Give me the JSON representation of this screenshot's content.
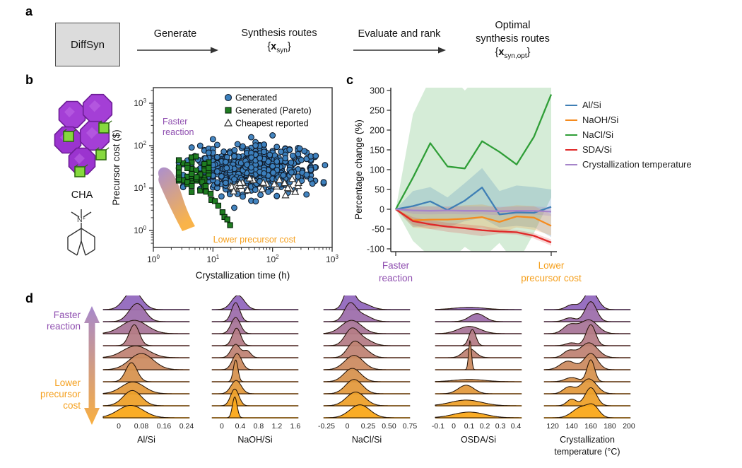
{
  "panel_a": {
    "label": "a",
    "diffsyn_box": "DiffSyn",
    "arrow1_label": "Generate",
    "arrow2_label": "Evaluate and rank",
    "step_routes": {
      "line1": "Synthesis routes",
      "brace_open": "{",
      "var": "x",
      "sub": "syn",
      "brace_close": "}"
    },
    "step_optimal": {
      "line1": "Optimal",
      "line2": "synthesis routes",
      "brace_open": "{",
      "var": "x",
      "sub": "syn,opt",
      "brace_close": "}"
    }
  },
  "panel_b": {
    "label": "b",
    "structure_caption": "CHA",
    "molecule_atom": "N",
    "molecule_charge": "+",
    "xlabel": "Crystallization time (h)",
    "ylabel": "Precursor cost ($)",
    "annotation_faster_line1": "Faster",
    "annotation_faster_line2": "reaction",
    "annotation_lower": "Lower precursor cost"
  },
  "panel_c": {
    "label": "c",
    "ylabel": "Percentage change (%)",
    "legend": [
      {
        "label": "Al/Si"
      },
      {
        "label": "NaOH/Si"
      },
      {
        "label": "NaCl/Si"
      },
      {
        "label": "SDA/Si"
      },
      {
        "label": "Crystallization temperature"
      }
    ],
    "xtick_left_line1": "Faster",
    "xtick_left_line2": "reaction",
    "xtick_right_line1": "Lower",
    "xtick_right_line2": "precursor cost"
  },
  "panel_d": {
    "label": "d",
    "annotation_faster_line1": "Faster",
    "annotation_faster_line2": "reaction",
    "annotation_lower_line1": "Lower",
    "annotation_lower_line2": "precursor",
    "annotation_lower_line3": "cost"
  },
  "colors": {
    "annotation_purple": "#8f4fb0",
    "annotation_orange": "#f5a01e",
    "arrow_gradient_top": "#9d7bc6",
    "arrow_gradient_bottom": "#f8a62a",
    "ridge_top": "#9268be",
    "ridge_bottom": "#faa819",
    "axis": "#333333"
  },
  "chart_data": [
    {
      "id": "b_scatter",
      "type": "scatter",
      "xlabel": "Crystallization time (h)",
      "ylabel": "Precursor cost ($)",
      "xscale": "log",
      "yscale": "log",
      "xlim": [
        1,
        1000
      ],
      "ylim": [
        0.4,
        2500
      ],
      "xtick_exponents": [
        "0",
        "1",
        "2",
        "3"
      ],
      "ytick_exponents": [
        "0",
        "1",
        "2",
        "3"
      ],
      "seed": 42,
      "series": [
        {
          "name": "Generated",
          "marker": "circle",
          "color": "#3c80bd",
          "edge": "#101c2c",
          "count": 620,
          "logx_mean": 1.62,
          "logx_sd": 0.52,
          "logx_clip": [
            0.4,
            2.88
          ],
          "logy_mean": 1.42,
          "logy_sd": 0.27,
          "logy_clip": [
            0.08,
            2.3
          ],
          "snap": true
        },
        {
          "name": "Generated (Pareto)",
          "marker": "square",
          "color": "#1f7d21",
          "edge": "#06230a",
          "count_cluster": 46,
          "cluster_logx": [
            0.4,
            0.95
          ],
          "cluster_logy_mean": 1.38,
          "cluster_logy_sd": 0.2,
          "cluster_logy_clip": [
            0.8,
            1.76
          ],
          "count_tail": 12,
          "tail_logx_start": 0.75,
          "tail_logx_step": 0.05,
          "tail_logy_start": 1.25,
          "tail_logy_step": -0.1,
          "snap": true
        },
        {
          "name": "Cheapest reported",
          "marker": "triangle",
          "color": "#ffffff",
          "edge": "#333333",
          "count": 26,
          "logx_range": [
            1.15,
            2.55
          ],
          "logy_mean": 1.08,
          "logy_sd": 0.1,
          "logy_clip": [
            0.75,
            1.3
          ]
        }
      ]
    },
    {
      "id": "c_lines",
      "type": "line",
      "ylabel": "Percentage change (%)",
      "ylim": [
        -100,
        300
      ],
      "yticks": [
        300,
        250,
        200,
        150,
        100,
        50,
        0,
        -50,
        -100
      ],
      "x_count": 10,
      "series": [
        {
          "name": "NaCl/Si",
          "color": "#2f9e37",
          "band_opacity": 0.2,
          "values": [
            0,
            80,
            167,
            108,
            103,
            172,
            145,
            113,
            183,
            290
          ],
          "band_lower": [
            0,
            -80,
            -120,
            -135,
            -95,
            -125,
            -85,
            -140,
            -60,
            30
          ],
          "band_upper": [
            0,
            240,
            330,
            345,
            300,
            345,
            330,
            310,
            350,
            430
          ]
        },
        {
          "name": "Al/Si",
          "color": "#3f7fb5",
          "band_opacity": 0.22,
          "values": [
            0,
            8,
            20,
            -2,
            22,
            55,
            -13,
            -8,
            -9,
            6
          ],
          "band_lower": [
            0,
            -45,
            -42,
            -46,
            -30,
            -22,
            -46,
            -42,
            -46,
            -70
          ],
          "band_upper": [
            0,
            46,
            56,
            30,
            66,
            104,
            46,
            60,
            56,
            50
          ]
        },
        {
          "name": "NaOH/Si",
          "color": "#f58b1f",
          "band_opacity": 0.22,
          "values": [
            0,
            -28,
            -26,
            -26,
            -24,
            -20,
            -32,
            -18,
            -21,
            -42
          ],
          "band_lower": [
            0,
            -46,
            -50,
            -46,
            -50,
            -46,
            -60,
            -46,
            -52,
            -66
          ],
          "band_upper": [
            0,
            6,
            8,
            6,
            10,
            12,
            4,
            10,
            8,
            -12
          ]
        },
        {
          "name": "SDA/Si",
          "color": "#e02828",
          "band_opacity": 0.18,
          "values": [
            0,
            -30,
            -38,
            -44,
            -48,
            -53,
            -56,
            -58,
            -67,
            -84
          ],
          "band_lower": [
            0,
            -40,
            -50,
            -57,
            -62,
            -68,
            -62,
            -64,
            -74,
            -92
          ],
          "band_upper": [
            0,
            -20,
            -28,
            -34,
            -38,
            -42,
            -50,
            -52,
            -60,
            -76
          ]
        },
        {
          "name": "Crystallization temperature",
          "color": "#a584c9",
          "band_opacity": 0.28,
          "values": [
            0,
            -3,
            -4,
            -3,
            -4,
            -4,
            -5,
            -4,
            -4,
            -6
          ],
          "band_lower": [
            0,
            -12,
            -13,
            -12,
            -13,
            -13,
            -15,
            -13,
            -13,
            -17
          ],
          "band_upper": [
            0,
            7,
            7,
            7,
            7,
            7,
            6,
            7,
            7,
            5
          ]
        }
      ],
      "legend_order": [
        "Al/Si",
        "NaOH/Si",
        "NaCl/Si",
        "SDA/Si",
        "Crystallization temperature"
      ]
    },
    {
      "id": "d_ridges",
      "type": "ridgeline",
      "n_rows": 10,
      "row_color_top": "#9268be",
      "row_color_bottom": "#faa819",
      "columns": [
        {
          "name": "Al/Si",
          "xmin": -0.055,
          "xmax": 0.25,
          "ticks": [
            0,
            0.08,
            0.16,
            0.24
          ],
          "tick_labels": [
            "0",
            "0.08",
            "0.16",
            "0.24"
          ],
          "rows": [
            [
              0.05,
              0.03,
              1.0
            ],
            [
              0.065,
              0.028,
              0.95
            ],
            [
              0.055,
              0.045,
              0.7
            ],
            [
              0.055,
              0.018,
              1.1
            ],
            [
              0.06,
              0.045,
              0.62
            ],
            [
              0.08,
              0.042,
              0.85
            ],
            [
              0.045,
              0.02,
              1.0
            ],
            [
              0.05,
              0.04,
              0.62
            ],
            [
              0.048,
              0.032,
              0.8
            ],
            [
              0.042,
              0.045,
              0.65
            ]
          ]
        },
        {
          "name": "NaOH/Si",
          "xmin": -0.215,
          "xmax": 1.662,
          "ticks": [
            0,
            0.4,
            0.8,
            1.2,
            1.6
          ],
          "tick_labels": [
            "0",
            "0.4",
            "0.8",
            "1.2",
            "1.6"
          ],
          "rows": [
            [
              0.35,
              0.14,
              0.75
            ],
            [
              0.3,
              0.09,
              1.0
            ],
            [
              0.3,
              0.1,
              0.85
            ],
            [
              0.32,
              0.09,
              0.92
            ],
            [
              0.3,
              0.1,
              0.7,
              0.55,
              0.08,
              0.35
            ],
            [
              0.33,
              0.1,
              0.85
            ],
            [
              0.3,
              0.05,
              1.15
            ],
            [
              0.31,
              0.11,
              0.7
            ],
            [
              0.28,
              0.09,
              0.88
            ],
            [
              0.28,
              0.05,
              1.1
            ]
          ]
        },
        {
          "name": "NaCl/Si",
          "xmin": -0.284,
          "xmax": 0.75,
          "ticks": [
            -0.25,
            0,
            0.25,
            0.5,
            0.75
          ],
          "tick_labels": [
            "-0.25",
            "0",
            "0.25",
            "0.50",
            "0.75"
          ],
          "rows": [
            [
              0.02,
              0.06,
              1.05,
              0.16,
              0.11,
              0.35
            ],
            [
              0.03,
              0.07,
              0.88,
              0.18,
              0.1,
              0.35
            ],
            [
              0.05,
              0.12,
              0.7
            ],
            [
              0.05,
              0.08,
              0.82,
              0.2,
              0.1,
              0.32
            ],
            [
              0.08,
              0.08,
              0.8,
              0.22,
              0.08,
              0.3
            ],
            [
              0.08,
              0.11,
              0.75
            ],
            [
              0.06,
              0.1,
              0.7
            ],
            [
              0.08,
              0.1,
              0.75
            ],
            [
              0.1,
              0.11,
              0.72
            ],
            [
              0.15,
              0.12,
              0.68
            ]
          ]
        },
        {
          "name": "OSDA/Si",
          "xmin": -0.118,
          "xmax": 0.436,
          "ticks": [
            -0.1,
            0,
            0.1,
            0.2,
            0.3,
            0.4
          ],
          "tick_labels": [
            "-0.1",
            "0",
            "0.1",
            "0.2",
            "0.3",
            "0.4"
          ],
          "rows": [
            [
              0.1,
              0.1,
              0.12
            ],
            [
              0.15,
              0.05,
              0.42
            ],
            [
              0.1,
              0.07,
              0.38
            ],
            [
              0.12,
              0.022,
              0.85
            ],
            [
              0.1,
              0.04,
              0.48
            ],
            [
              0.105,
              0.009,
              1.55
            ],
            [
              0.1,
              0.1,
              0.12
            ],
            [
              0.08,
              0.05,
              0.45
            ],
            [
              0.08,
              0.1,
              0.3
            ],
            [
              0.1,
              0.1,
              0.3
            ]
          ]
        },
        {
          "name": "Crystallization\ntemperature (°C)",
          "xmin": 111,
          "xmax": 201.5,
          "ticks": [
            120,
            140,
            160,
            180,
            200
          ],
          "tick_labels": [
            "120",
            "140",
            "160",
            "180",
            "200"
          ],
          "rows": [
            [
              160,
              7,
              1.0,
              140,
              6,
              0.25
            ],
            [
              160,
              6,
              1.05,
              138,
              6,
              0.2
            ],
            [
              158,
              9,
              0.72,
              138,
              7,
              0.45
            ],
            [
              160,
              5,
              1.1,
              140,
              6,
              0.15
            ],
            [
              158,
              9,
              0.78,
              137,
              6,
              0.35
            ],
            [
              160,
              7,
              0.85,
              136,
              8,
              0.45
            ],
            [
              160,
              4,
              1.15,
              140,
              7,
              0.22
            ],
            [
              158,
              8,
              0.78,
              137,
              6,
              0.35
            ],
            [
              160,
              6,
              0.95,
              140,
              5,
              0.35
            ],
            [
              150,
              9,
              0.55,
              163,
              6,
              0.5
            ]
          ]
        }
      ]
    }
  ]
}
